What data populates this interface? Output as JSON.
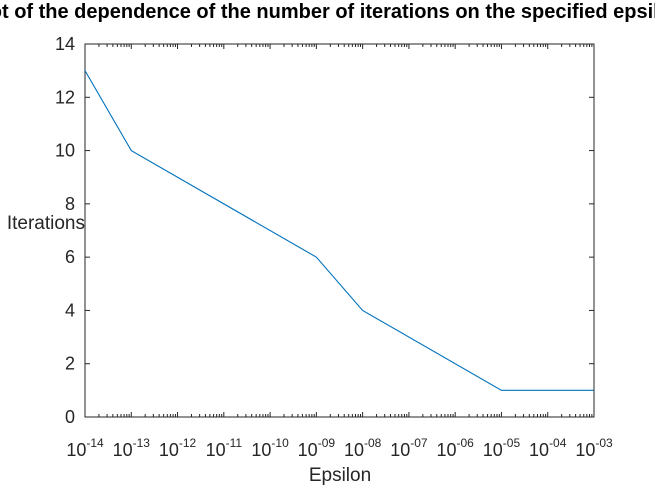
{
  "chart_data": {
    "type": "line",
    "title": "Plot of the dependence of the number of iterations on the specified epsilon",
    "xlabel": "Epsilon",
    "ylabel": "Iterations",
    "x_scale": "log",
    "xlim": [
      1e-14,
      0.001
    ],
    "ylim": [
      0,
      14
    ],
    "x_ticks": [
      {
        "base": "10",
        "exp": "-14"
      },
      {
        "base": "10",
        "exp": "-13"
      },
      {
        "base": "10",
        "exp": "-12"
      },
      {
        "base": "10",
        "exp": "-11"
      },
      {
        "base": "10",
        "exp": "-10"
      },
      {
        "base": "10",
        "exp": "-09"
      },
      {
        "base": "10",
        "exp": "-08"
      },
      {
        "base": "10",
        "exp": "-07"
      },
      {
        "base": "10",
        "exp": "-06"
      },
      {
        "base": "10",
        "exp": "-05"
      },
      {
        "base": "10",
        "exp": "-04"
      },
      {
        "base": "10",
        "exp": "-03"
      }
    ],
    "y_ticks": [
      "0",
      "2",
      "4",
      "6",
      "8",
      "10",
      "12",
      "14"
    ],
    "grid": false,
    "series": [
      {
        "color": "#0072bd",
        "x": [
          1e-14,
          1e-13,
          1e-09,
          1e-08,
          1e-05,
          0.001
        ],
        "y": [
          13,
          10,
          6,
          4,
          1,
          1
        ]
      }
    ]
  }
}
